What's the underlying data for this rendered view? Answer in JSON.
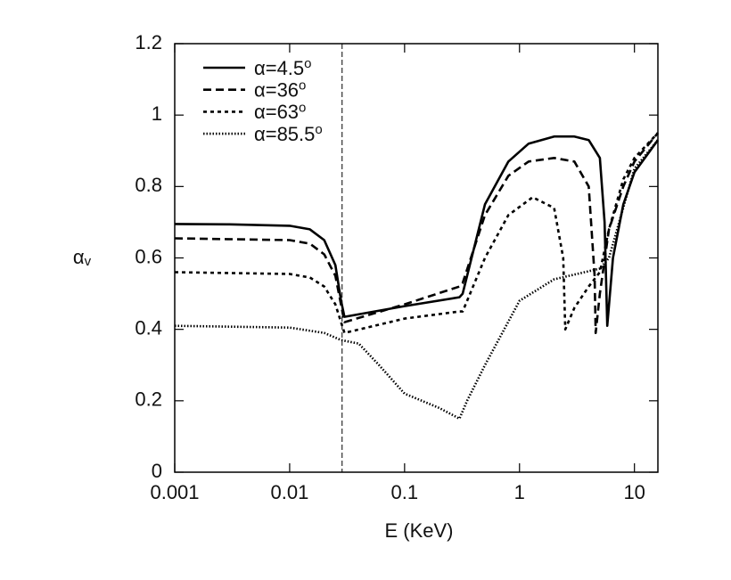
{
  "chart_data": {
    "type": "line",
    "x_label": "E (KeV)",
    "y_label": "αv",
    "xscale": "log",
    "xlim": [
      0.001,
      16
    ],
    "xticks": [
      0.001,
      0.01,
      0.1,
      1,
      10
    ],
    "ylim": [
      0,
      1.2
    ],
    "yticks": [
      0,
      0.2,
      0.4,
      0.6,
      0.8,
      1,
      1.2
    ],
    "vline": 0.0286,
    "legend": "upper left",
    "series": [
      {
        "name": "α=4.5o",
        "color": "#000000",
        "dash": "none",
        "x": [
          0.001,
          0.003,
          0.01,
          0.015,
          0.02,
          0.025,
          0.028,
          0.03,
          0.1,
          0.3,
          0.32,
          0.5,
          0.8,
          1.2,
          2,
          3,
          4,
          5,
          5.5,
          5.8,
          6.5,
          8,
          10,
          16
        ],
        "values": [
          0.695,
          0.694,
          0.69,
          0.68,
          0.65,
          0.58,
          0.48,
          0.435,
          0.465,
          0.49,
          0.5,
          0.75,
          0.87,
          0.92,
          0.94,
          0.94,
          0.93,
          0.88,
          0.7,
          0.41,
          0.6,
          0.75,
          0.84,
          0.93
        ]
      },
      {
        "name": "α=36o",
        "color": "#000000",
        "dash": "9,5",
        "x": [
          0.001,
          0.01,
          0.015,
          0.02,
          0.025,
          0.03,
          0.1,
          0.3,
          0.32,
          0.5,
          0.8,
          1.2,
          2,
          3,
          4,
          4.5,
          4.6,
          5,
          6,
          8,
          10,
          16
        ],
        "values": [
          0.655,
          0.65,
          0.64,
          0.61,
          0.55,
          0.42,
          0.47,
          0.52,
          0.53,
          0.72,
          0.83,
          0.87,
          0.88,
          0.87,
          0.8,
          0.55,
          0.39,
          0.5,
          0.68,
          0.8,
          0.87,
          0.95
        ]
      },
      {
        "name": "α=63o",
        "color": "#000000",
        "dash": "4,4",
        "x": [
          0.001,
          0.01,
          0.015,
          0.02,
          0.025,
          0.03,
          0.1,
          0.3,
          0.32,
          0.5,
          0.8,
          1.3,
          2,
          2.4,
          2.5,
          3,
          4,
          5,
          6,
          8,
          10,
          16
        ],
        "values": [
          0.56,
          0.555,
          0.545,
          0.52,
          0.47,
          0.39,
          0.43,
          0.45,
          0.45,
          0.6,
          0.72,
          0.77,
          0.74,
          0.6,
          0.4,
          0.46,
          0.52,
          0.56,
          0.68,
          0.82,
          0.88,
          0.95
        ]
      },
      {
        "name": "α=85.5o",
        "color": "#000000",
        "dash": "1.5,2",
        "x": [
          0.001,
          0.01,
          0.02,
          0.028,
          0.04,
          0.06,
          0.1,
          0.2,
          0.3,
          0.35,
          0.5,
          1,
          2,
          5,
          6,
          10,
          16
        ],
        "values": [
          0.41,
          0.405,
          0.39,
          0.37,
          0.36,
          0.3,
          0.22,
          0.18,
          0.15,
          0.2,
          0.3,
          0.48,
          0.54,
          0.57,
          0.6,
          0.85,
          0.93
        ]
      }
    ]
  }
}
